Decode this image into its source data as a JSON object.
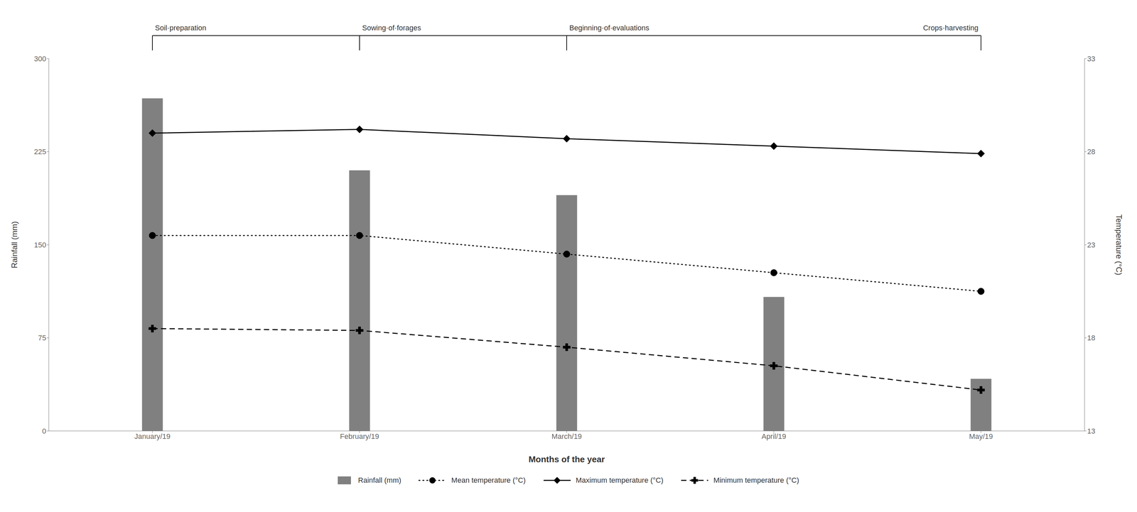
{
  "chart_data": {
    "type": "bar",
    "categories": [
      "January/19",
      "February/19",
      "March/19",
      "April/19",
      "May/19"
    ],
    "series": [
      {
        "name": "Rainfall (mm)",
        "type": "bar",
        "color": "#808080",
        "values": [
          268,
          210,
          190,
          108,
          42
        ]
      },
      {
        "name": "Mean temperature (°C)",
        "type": "line",
        "axis": "y2",
        "color": "#000000",
        "marker": "circle",
        "line_style": "dotted",
        "values": [
          23.5,
          23.5,
          22.5,
          21.5,
          20.5
        ]
      },
      {
        "name": "Maximum temperature (°C)",
        "type": "line",
        "axis": "y2",
        "color": "#000000",
        "marker": "diamond",
        "line_style": "solid",
        "values": [
          29.0,
          29.2,
          28.7,
          28.3,
          27.9
        ]
      },
      {
        "name": "Minimum temperature (°C)",
        "type": "line",
        "axis": "y2",
        "color": "#000000",
        "marker": "plus",
        "line_style": "dashed",
        "values": [
          18.5,
          18.4,
          17.5,
          16.5,
          15.2
        ]
      }
    ],
    "xlabel": "Months of the year",
    "ylabel": "Rainfall (mm)",
    "y2label": "Temperature (°C)",
    "ylim": [
      0,
      300
    ],
    "yticks": [
      0,
      75,
      150,
      225,
      300
    ],
    "y2lim": [
      13,
      33
    ],
    "y2ticks": [
      13,
      18,
      23,
      28,
      33
    ],
    "annotations": [
      {
        "text": "Soil·preparation",
        "x": "January/19"
      },
      {
        "text": "Sowing·of·forages",
        "x": "February/19"
      },
      {
        "text": "Beginning·of·evaluations",
        "x": "March/19"
      },
      {
        "text": "Crops·harvesting",
        "x": "May/19"
      }
    ],
    "grid": false,
    "legend": "bottom"
  }
}
